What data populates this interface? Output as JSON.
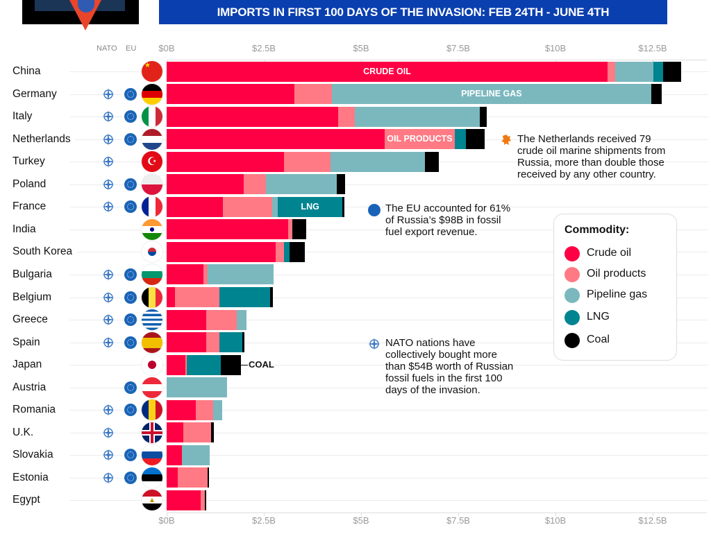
{
  "header": {
    "title": "IMPORTS IN FIRST 100 DAYS OF THE INVASION:  FEB 24TH - JUNE 4TH",
    "hero_image": "oil-tanker-ship-image"
  },
  "columns": {
    "nato": "NATO",
    "eu": "EU"
  },
  "colors": {
    "crude_oil": "#ff0044",
    "oil_products": "#ff7a85",
    "pipeline_gas": "#7bb8be",
    "lng": "#008490",
    "coal": "#000000",
    "title_bar": "#0a3fb0"
  },
  "chart_data": {
    "type": "bar",
    "orientation": "horizontal",
    "stacked": true,
    "title": "IMPORTS IN FIRST 100 DAYS OF THE INVASION:  FEB 24TH - JUNE 4TH",
    "xlabel": "",
    "ylabel": "",
    "xlim": [
      0,
      13.5
    ],
    "x_ticks": [
      "$0B",
      "$2.5B",
      "$5B",
      "$7.5B",
      "$10B",
      "$12.5B"
    ],
    "x_tick_values": [
      0,
      2.5,
      5,
      7.5,
      10,
      12.5
    ],
    "grid": true,
    "legend_position": "right",
    "legend_title": "Commodity:",
    "categories": [
      "China",
      "Germany",
      "Italy",
      "Netherlands",
      "Turkey",
      "Poland",
      "France",
      "India",
      "South Korea",
      "Bulgaria",
      "Belgium",
      "Greece",
      "Spain",
      "Japan",
      "Austria",
      "Romania",
      "U.K.",
      "Slovakia",
      "Estonia",
      "Egypt"
    ],
    "nato": [
      false,
      true,
      true,
      true,
      true,
      true,
      true,
      false,
      false,
      true,
      true,
      true,
      true,
      false,
      false,
      true,
      true,
      true,
      true,
      false
    ],
    "eu": [
      false,
      true,
      true,
      true,
      false,
      true,
      true,
      false,
      false,
      true,
      true,
      true,
      true,
      false,
      true,
      true,
      false,
      true,
      true,
      false
    ],
    "series": [
      {
        "name": "Crude oil",
        "key": "crude_oil",
        "values": [
          11.34,
          3.29,
          4.41,
          5.61,
          3.02,
          1.98,
          1.45,
          3.13,
          2.8,
          0.95,
          0.21,
          1.02,
          1.02,
          0.48,
          0,
          0.75,
          0.43,
          0.39,
          0.29,
          0.88
        ]
      },
      {
        "name": "Oil products",
        "key": "oil_products",
        "values": [
          0.2,
          0.96,
          0.43,
          1.8,
          1.19,
          0.57,
          1.26,
          0.1,
          0.21,
          0.11,
          1.15,
          0.78,
          0.34,
          0.04,
          0,
          0.45,
          0.71,
          0,
          0.76,
          0.1
        ]
      },
      {
        "name": "Pipeline gas",
        "key": "pipeline_gas",
        "values": [
          0.98,
          8.21,
          3.21,
          0,
          2.43,
          1.83,
          0.15,
          0,
          0,
          1.69,
          0,
          0.26,
          0,
          0,
          1.55,
          0.22,
          0,
          0.72,
          0,
          0
        ]
      },
      {
        "name": "LNG",
        "key": "lng",
        "values": [
          0.25,
          0,
          0,
          0.29,
          0,
          0,
          1.66,
          0,
          0.15,
          0,
          1.3,
          0,
          0.59,
          0.87,
          0,
          0,
          0,
          0,
          0,
          0
        ]
      },
      {
        "name": "Coal",
        "key": "coal",
        "values": [
          0.46,
          0.27,
          0.18,
          0.48,
          0.36,
          0.21,
          0.05,
          0.36,
          0.39,
          0,
          0.07,
          0,
          0.05,
          0.52,
          0,
          0,
          0.07,
          0,
          0.04,
          0.04
        ]
      }
    ],
    "segment_labels": [
      {
        "country": "China",
        "series": "crude_oil",
        "text": "CRUDE OIL"
      },
      {
        "country": "Germany",
        "series": "pipeline_gas",
        "text": "PIPELINE GAS"
      },
      {
        "country": "Netherlands",
        "series": "oil_products",
        "text": "OIL PRODUCTS"
      },
      {
        "country": "France",
        "series": "lng",
        "text": "LNG"
      }
    ],
    "annotations": [
      {
        "country": "Japan",
        "series": "coal",
        "text": "COAL"
      }
    ]
  },
  "notes": [
    {
      "icon": "dutch-lion-icon",
      "text": [
        "The Netherlands received 79",
        "crude oil marine shipments from",
        "Russia, more than double those",
        "received by any other country."
      ]
    },
    {
      "icon": "eu-flag-icon",
      "text": [
        "The EU accounted for 61%",
        "of Russia’s $98B in fossil",
        "fuel export revenue."
      ]
    },
    {
      "icon": "nato-icon",
      "text": [
        "NATO nations have",
        "collectively bought more",
        "than $54B worth of Russian",
        "fossil fuels in the first 100",
        "days of the invasion."
      ]
    }
  ],
  "legend": {
    "title": "Commodity:",
    "items": [
      {
        "label": "Crude oil",
        "key": "crude_oil"
      },
      {
        "label": "Oil products",
        "key": "oil_products"
      },
      {
        "label": "Pipeline gas",
        "key": "pipeline_gas"
      },
      {
        "label": "LNG",
        "key": "lng"
      },
      {
        "label": "Coal",
        "key": "coal"
      }
    ]
  }
}
